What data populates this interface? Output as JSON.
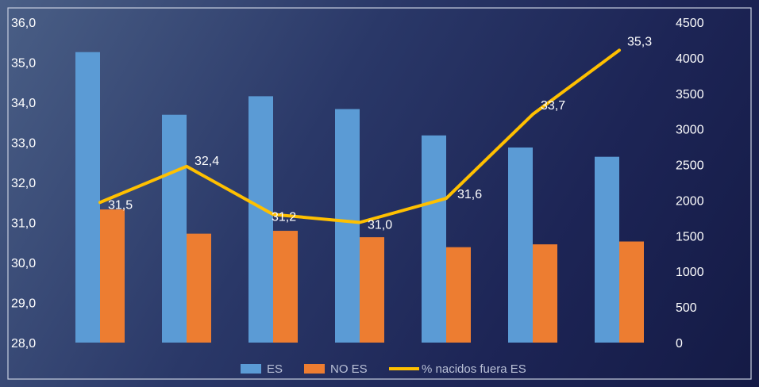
{
  "chart_data": {
    "type": "bar",
    "categories": [
      "",
      "",
      "",
      "",
      "",
      "",
      ""
    ],
    "series": [
      {
        "name": "ES",
        "type": "bar",
        "axis": "right",
        "color": "#5b9bd5",
        "values": [
          4080,
          3200,
          3460,
          3280,
          2910,
          2740,
          2610
        ]
      },
      {
        "name": "NO ES",
        "type": "bar",
        "axis": "right",
        "color": "#ed7d31",
        "values": [
          1870,
          1530,
          1570,
          1480,
          1340,
          1380,
          1420
        ]
      },
      {
        "name": "% nacidos fuera ES",
        "type": "line",
        "axis": "left",
        "color": "#ffc000",
        "values": [
          31.5,
          32.4,
          31.2,
          31.0,
          31.6,
          33.7,
          35.3
        ],
        "labels": [
          "31,5",
          "32,4",
          "31,2",
          "31,0",
          "31,6",
          "33,7",
          "35,3"
        ]
      }
    ],
    "y_left": {
      "min": 28.0,
      "max": 36.0,
      "ticks": [
        "28,0",
        "29,0",
        "30,0",
        "31,0",
        "32,0",
        "33,0",
        "34,0",
        "35,0",
        "36,0"
      ]
    },
    "y_right": {
      "min": 0,
      "max": 4500,
      "ticks": [
        "0",
        "500",
        "1000",
        "1500",
        "2000",
        "2500",
        "3000",
        "3500",
        "4000",
        "4500"
      ]
    },
    "grid": false,
    "legend": {
      "position": "bottom",
      "entries": [
        "ES",
        "NO ES",
        "% nacidos fuera ES"
      ]
    },
    "title": "",
    "xlabel": "",
    "ylabel": ""
  }
}
